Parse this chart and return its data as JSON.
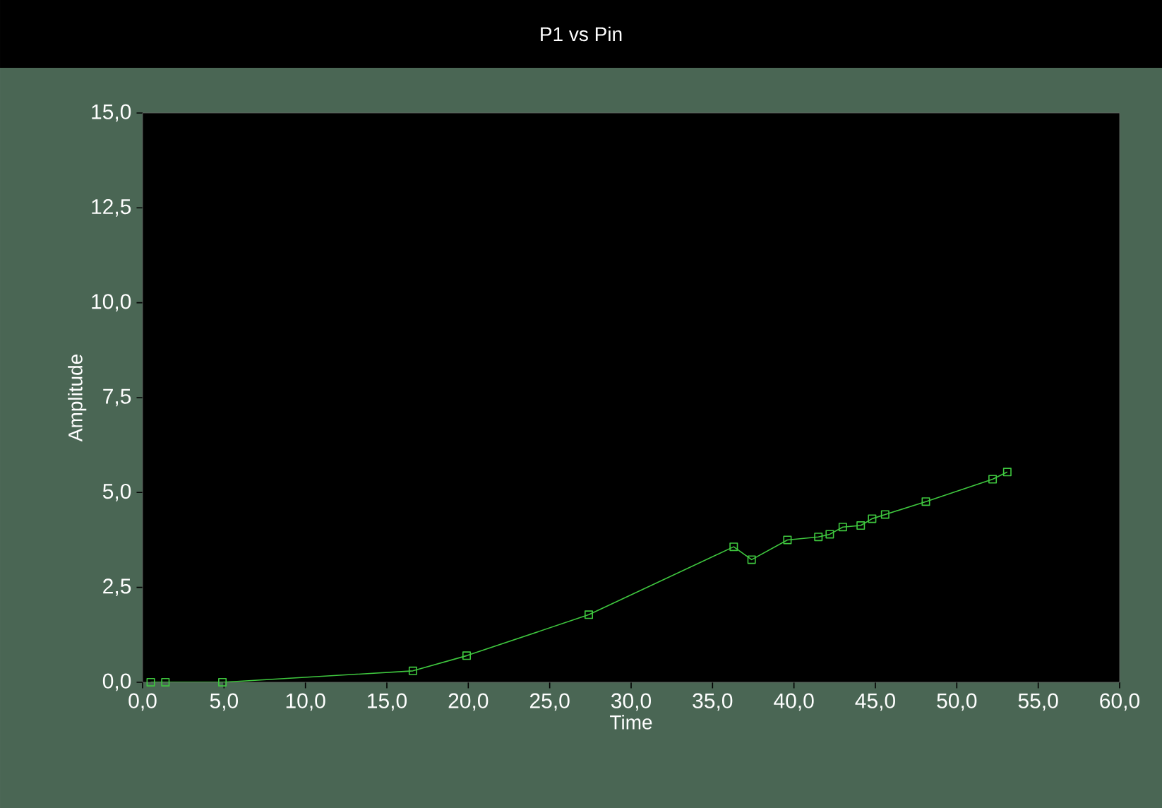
{
  "chart_data": {
    "type": "line",
    "title": "P1 vs Pin",
    "xlabel": "Time",
    "ylabel": "Amplitude",
    "x": [
      0.5,
      1.4,
      4.9,
      16.6,
      19.9,
      27.4,
      36.3,
      37.4,
      39.6,
      41.5,
      42.2,
      43.0,
      44.1,
      44.8,
      45.6,
      48.1,
      52.2,
      53.1
    ],
    "series": [
      {
        "color": "#3fc83f",
        "values": [
          0,
          0,
          0,
          0.3,
          0.7,
          1.78,
          3.57,
          3.23,
          3.75,
          3.83,
          3.9,
          4.09,
          4.13,
          4.31,
          4.42,
          4.76,
          5.35,
          5.54
        ]
      }
    ],
    "xlim": [
      0,
      60
    ],
    "ylim": [
      0,
      15
    ],
    "xticks": [
      {
        "value": 0,
        "label": "0,0"
      },
      {
        "value": 5,
        "label": "5,0"
      },
      {
        "value": 10,
        "label": "10,0"
      },
      {
        "value": 15,
        "label": "15,0"
      },
      {
        "value": 20,
        "label": "20,0"
      },
      {
        "value": 25,
        "label": "25,0"
      },
      {
        "value": 30,
        "label": "30,0"
      },
      {
        "value": 35,
        "label": "35,0"
      },
      {
        "value": 40,
        "label": "40,0"
      },
      {
        "value": 45,
        "label": "45,0"
      },
      {
        "value": 50,
        "label": "50,0"
      },
      {
        "value": 55,
        "label": "55,0"
      },
      {
        "value": 60,
        "label": "60,0"
      }
    ],
    "yticks": [
      {
        "value": 0,
        "label": "0,0"
      },
      {
        "value": 2.5,
        "label": "2,5"
      },
      {
        "value": 5,
        "label": "5,0"
      },
      {
        "value": 7.5,
        "label": "7,5"
      },
      {
        "value": 10,
        "label": "10,0"
      },
      {
        "value": 12.5,
        "label": "12,5"
      },
      {
        "value": 15,
        "label": "15,0"
      }
    ],
    "grid": false,
    "marker": "square",
    "line_style": "solid"
  }
}
